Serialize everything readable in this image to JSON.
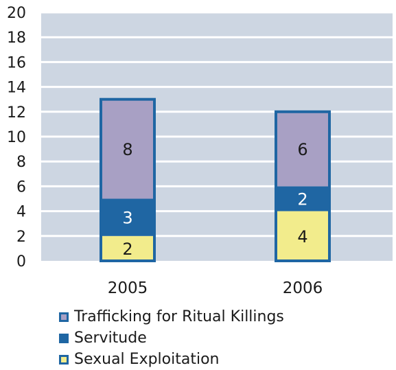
{
  "chart_data": {
    "type": "bar",
    "stacked": true,
    "categories": [
      "2005",
      "2006"
    ],
    "series": [
      {
        "name": "Sexual Exploitation",
        "values": [
          2,
          4
        ],
        "color": "#f2ec8c"
      },
      {
        "name": "Servitude",
        "values": [
          3,
          2
        ],
        "color": "#1f66a3"
      },
      {
        "name": "Trafficking for Ritual Killings",
        "values": [
          8,
          6
        ],
        "color": "#a8a0c4"
      }
    ],
    "legend_order": [
      "Trafficking for Ritual Killings",
      "Servitude",
      "Sexual Exploitation"
    ],
    "ylim": [
      0,
      20
    ],
    "yticks": [
      "0",
      "2",
      "4",
      "6",
      "8",
      "10",
      "12",
      "14",
      "16",
      "18",
      "20"
    ],
    "grid": true,
    "legend_position": "bottom-left",
    "title": "",
    "xlabel": "",
    "ylabel": "",
    "colors": {
      "plot_background": "#cdd6e2",
      "gridline": "#ffffff",
      "bar_outline": "#1f66a3"
    }
  }
}
